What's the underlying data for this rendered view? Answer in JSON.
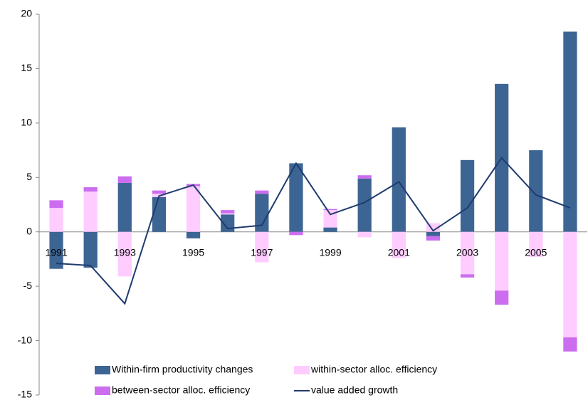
{
  "chart_data": {
    "type": "bar",
    "categories": [
      "1991",
      null,
      "1993",
      null,
      "1995",
      null,
      "1997",
      null,
      "1999",
      null,
      "2001",
      null,
      "2003",
      null,
      "2005",
      null
    ],
    "series": [
      {
        "name": "Within-firm productivity changes",
        "color": "#3d6594",
        "values": [
          -3.4,
          -3.3,
          4.5,
          3.2,
          -0.6,
          1.6,
          3.5,
          6.3,
          0.4,
          4.9,
          9.6,
          -0.4,
          6.6,
          13.6,
          7.5,
          18.4
        ]
      },
      {
        "name": "within-sector alloc. efficiency",
        "color": "#ffccff",
        "values": [
          2.2,
          3.7,
          -4.1,
          0.3,
          4.2,
          0.1,
          -2.8,
          0,
          1.6,
          -0.5,
          -2.4,
          0.8,
          -3.9,
          -5.4,
          -2.3,
          -9.7
        ]
      },
      {
        "name": "between-sector alloc. efficiency",
        "color": "#cc6df0",
        "values": [
          0.7,
          0.4,
          0.6,
          0.3,
          0.2,
          0.3,
          0.3,
          -0.3,
          0.1,
          0.3,
          0,
          -0.4,
          -0.3,
          -1.3,
          0,
          -1.3
        ]
      },
      {
        "name": "value added growth",
        "color": "#1f3b6f",
        "type": "line",
        "values": [
          -2.9,
          -3.1,
          -6.6,
          3.3,
          4.3,
          0.3,
          0.6,
          6.3,
          1.6,
          2.7,
          4.6,
          0.1,
          2.2,
          6.8,
          3.4,
          2.2
        ]
      }
    ],
    "ylim": [
      -15,
      20
    ],
    "yticks": [
      -15,
      -10,
      -5,
      0,
      5,
      10,
      15,
      20
    ],
    "stacked": true,
    "grid": false,
    "legend": "bottom"
  }
}
